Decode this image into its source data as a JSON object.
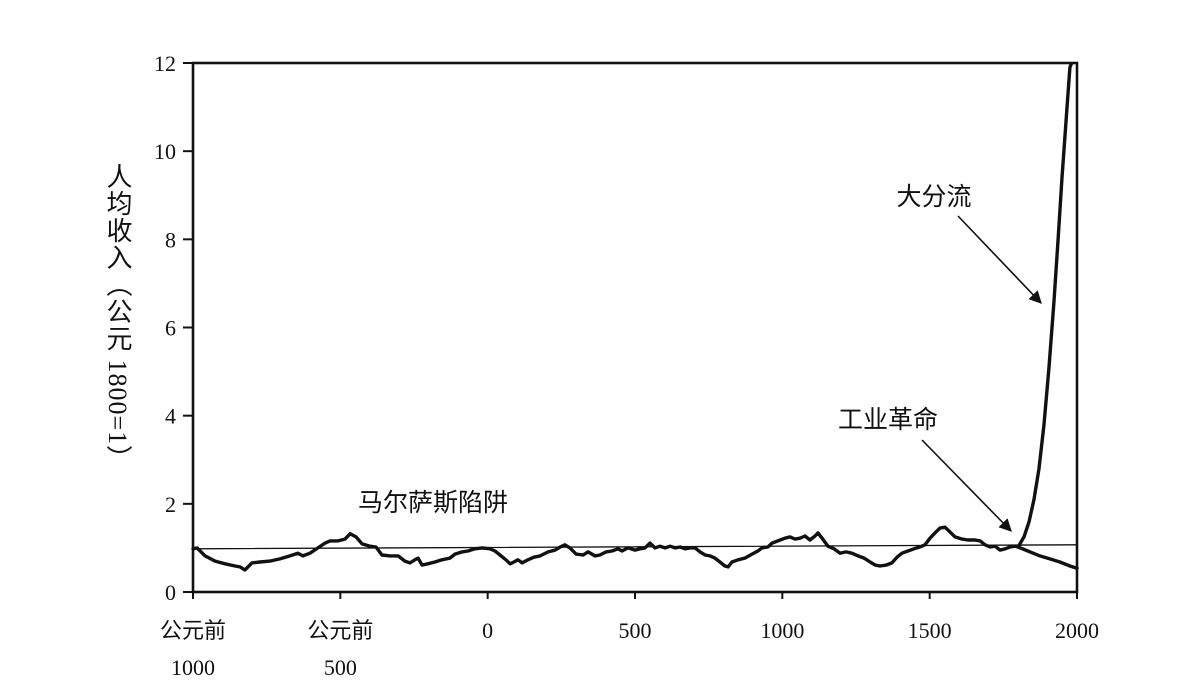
{
  "chart_data": {
    "type": "line",
    "ylabel": "人均收入（公元 1800=1）",
    "xlim": [
      -1000,
      2000
    ],
    "ylim": [
      0,
      12
    ],
    "yticks": [
      0,
      2,
      4,
      6,
      8,
      10,
      12
    ],
    "xticks": [
      -1000,
      -500,
      0,
      500,
      1000,
      1500,
      2000
    ],
    "xtick_labels": [
      [
        "公元前",
        "1000"
      ],
      [
        "公元前",
        "500"
      ],
      [
        "0"
      ],
      [
        "500"
      ],
      [
        "1000"
      ],
      [
        "1500"
      ],
      [
        "2000"
      ]
    ],
    "grid": false,
    "annotations": [
      {
        "text": "马尔萨斯陷阱",
        "arrow": false
      },
      {
        "text": "工业革命",
        "arrow": true
      },
      {
        "text": "大分流",
        "arrow": true
      }
    ],
    "series": [
      {
        "x": [
          -1000,
          -986,
          -959,
          -925,
          -891,
          -857,
          -840,
          -824,
          -800,
          -773,
          -739,
          -705,
          -671,
          -644,
          -627,
          -603,
          -576,
          -552,
          -535,
          -508,
          -484,
          -467,
          -447,
          -426,
          -399,
          -379,
          -359,
          -331,
          -304,
          -281,
          -264,
          -247,
          -236,
          -223,
          -203,
          -179,
          -155,
          -128,
          -111,
          -87,
          -67,
          -43,
          -19,
          8,
          25,
          42,
          62,
          76,
          89,
          103,
          117,
          137,
          157,
          178,
          205,
          229,
          246,
          262,
          279,
          300,
          324,
          341,
          364,
          381,
          402,
          422,
          442,
          456,
          476,
          500,
          517,
          534,
          551,
          568,
          585,
          602,
          619,
          636,
          653,
          670,
          687,
          704,
          721,
          738,
          755,
          771,
          788,
          805,
          816,
          829,
          850,
          873,
          897,
          917,
          931,
          951,
          965,
          985,
          1009,
          1026,
          1043,
          1060,
          1077,
          1094,
          1111,
          1121,
          1135,
          1155,
          1175,
          1196,
          1216,
          1236,
          1257,
          1277,
          1298,
          1315,
          1331,
          1352,
          1372,
          1389,
          1406,
          1426,
          1447,
          1467,
          1484,
          1501,
          1518,
          1535,
          1552,
          1569,
          1586,
          1610,
          1630,
          1654,
          1671,
          1688,
          1705,
          1722,
          1739,
          1756,
          1773,
          1790,
          1800,
          1820,
          1837,
          1854,
          1871,
          1888,
          1905,
          1922,
          1936,
          1949,
          1963,
          1976,
          1982
        ],
        "y": [
          0.98,
          1.0,
          0.82,
          0.7,
          0.64,
          0.59,
          0.57,
          0.5,
          0.66,
          0.68,
          0.7,
          0.75,
          0.82,
          0.88,
          0.82,
          0.88,
          1.0,
          1.11,
          1.16,
          1.16,
          1.2,
          1.32,
          1.25,
          1.09,
          1.04,
          1.02,
          0.84,
          0.82,
          0.82,
          0.7,
          0.66,
          0.73,
          0.77,
          0.61,
          0.64,
          0.68,
          0.73,
          0.77,
          0.86,
          0.91,
          0.93,
          0.98,
          1.0,
          0.98,
          0.93,
          0.84,
          0.73,
          0.64,
          0.68,
          0.73,
          0.66,
          0.73,
          0.79,
          0.82,
          0.91,
          0.95,
          1.02,
          1.07,
          1.0,
          0.86,
          0.84,
          0.91,
          0.82,
          0.84,
          0.91,
          0.93,
          0.98,
          0.93,
          1.0,
          0.95,
          0.98,
          1.0,
          1.11,
          1.0,
          1.04,
          1.0,
          1.04,
          1.0,
          1.02,
          0.98,
          1.0,
          1.0,
          0.91,
          0.84,
          0.82,
          0.77,
          0.68,
          0.59,
          0.57,
          0.68,
          0.73,
          0.77,
          0.86,
          0.93,
          1.0,
          1.02,
          1.11,
          1.16,
          1.22,
          1.25,
          1.2,
          1.22,
          1.27,
          1.18,
          1.27,
          1.34,
          1.22,
          1.04,
          0.98,
          0.88,
          0.91,
          0.88,
          0.82,
          0.77,
          0.68,
          0.61,
          0.59,
          0.61,
          0.66,
          0.79,
          0.88,
          0.93,
          0.98,
          1.02,
          1.07,
          1.22,
          1.34,
          1.45,
          1.47,
          1.36,
          1.25,
          1.2,
          1.18,
          1.18,
          1.16,
          1.07,
          1.02,
          1.04,
          0.95,
          0.98,
          1.02,
          1.04,
          1.02,
          1.25,
          1.59,
          2.1,
          2.8,
          3.8,
          5.1,
          6.6,
          8.0,
          9.4,
          10.7,
          11.9,
          12.0
        ]
      },
      {
        "x": [
          1800,
          1841,
          1874,
          1908,
          1942,
          1976,
          2000
        ],
        "y": [
          1.02,
          0.91,
          0.82,
          0.75,
          0.68,
          0.59,
          0.54
        ]
      },
      {
        "x": [
          -1000,
          2000
        ],
        "y": [
          0.98,
          1.07
        ]
      }
    ],
    "colors": {
      "line": "#111111",
      "background": "#ffffff"
    }
  }
}
